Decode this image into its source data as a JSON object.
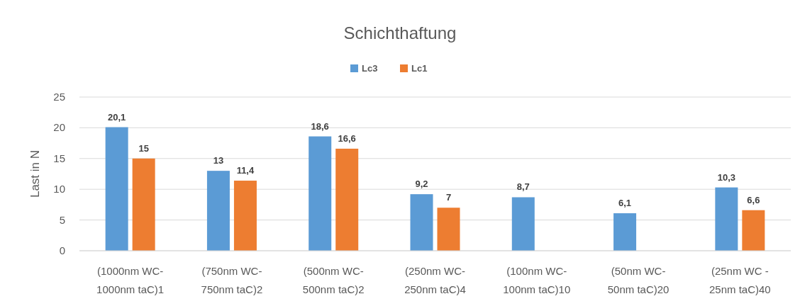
{
  "chart_data": {
    "type": "bar",
    "title": "Schichthaftung",
    "ylabel": "Last in N",
    "categories": [
      "(1000nm WC-\n1000nm taC)1",
      "(750nm WC-\n750nm taC)2",
      "(500nm WC-\n500nm taC)2",
      "(250nm WC-\n250nm taC)4",
      "(100nm WC-\n100nm taC)10",
      "(50nm WC-\n50nm taC)20",
      "(25nm WC -\n25nm taC)40"
    ],
    "series": [
      {
        "name": "Lc3",
        "color": "#5b9bd5",
        "values": [
          20.1,
          13,
          18.6,
          9.2,
          8.7,
          6.1,
          10.3
        ],
        "value_labels": [
          "20,1",
          "13",
          "18,6",
          "9,2",
          "8,7",
          "6,1",
          "10,3"
        ]
      },
      {
        "name": "Lc1",
        "color": "#ed7d31",
        "values": [
          15,
          11.4,
          16.6,
          7,
          null,
          null,
          6.6
        ],
        "value_labels": [
          "15",
          "11,4",
          "16,6",
          "7",
          null,
          null,
          "6,6"
        ]
      }
    ],
    "ylim": [
      0,
      25
    ],
    "yticks": [
      0,
      5,
      10,
      15,
      20,
      25
    ],
    "grid": "y",
    "legend": "top"
  }
}
